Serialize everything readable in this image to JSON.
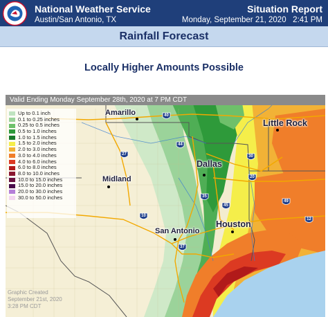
{
  "header": {
    "org": "National Weather Service",
    "office": "Austin/San Antonio, TX",
    "report": "Situation Report",
    "datetime": "Monday, September 21, 2020   2:41 PM",
    "logo_text": "NATIONAL WEATHER SERVICE"
  },
  "title": "Rainfall Forecast",
  "subtitle": "Locally Higher Amounts Possible",
  "map": {
    "valid_banner": "Valid Ending Monday September 28th, 2020 at 7 PM CDT",
    "legend": [
      {
        "label": "Up to 0.1 inch",
        "color": "#bfe3c0"
      },
      {
        "label": "0.1 to 0.25 inches",
        "color": "#9bd39a"
      },
      {
        "label": "0.25 to 0.5 inches",
        "color": "#6ec06a"
      },
      {
        "label": "0.5 to 1.0 inches",
        "color": "#2e9a3a"
      },
      {
        "label": "1.0 to 1.5 inches",
        "color": "#1a7a2a"
      },
      {
        "label": "1.5 to 2.0 inches",
        "color": "#f5ee4a"
      },
      {
        "label": "2.0 to 3.0 inches",
        "color": "#f2b236"
      },
      {
        "label": "3.0 to 4.0 inches",
        "color": "#f07e2a"
      },
      {
        "label": "4.0 to 6.0 inches",
        "color": "#dc3a22"
      },
      {
        "label": "6.0 to 8.0 inches",
        "color": "#b11a1a"
      },
      {
        "label": "8.0 to 10.0 inches",
        "color": "#8a1830"
      },
      {
        "label": "10.0 to 15.0 inches",
        "color": "#6a1240"
      },
      {
        "label": "15.0 to 20.0 inches",
        "color": "#4a0c4a"
      },
      {
        "label": "20.0 to 30.0 inches",
        "color": "#b57fd8"
      },
      {
        "label": "30.0 to 50.0 inches",
        "color": "#f4d6f0"
      }
    ],
    "cities": {
      "amarillo": "Amarillo",
      "little_rock": "Little Rock",
      "dallas": "Dallas",
      "midland": "Midland",
      "san_antonio": "San Antonio",
      "houston": "Houston"
    },
    "highways": [
      "40",
      "44",
      "27",
      "30",
      "20",
      "35",
      "45",
      "49",
      "10",
      "37",
      "12"
    ],
    "created": [
      "Graphic Created",
      "September 21st, 2020",
      "3:28 PM CDT"
    ]
  },
  "colors": {
    "header_bg": "#1f3f7a",
    "title_strip_bg": "#c5d8ee",
    "title_text": "#1a2f66",
    "gulf_water": "#a9d2ee"
  }
}
